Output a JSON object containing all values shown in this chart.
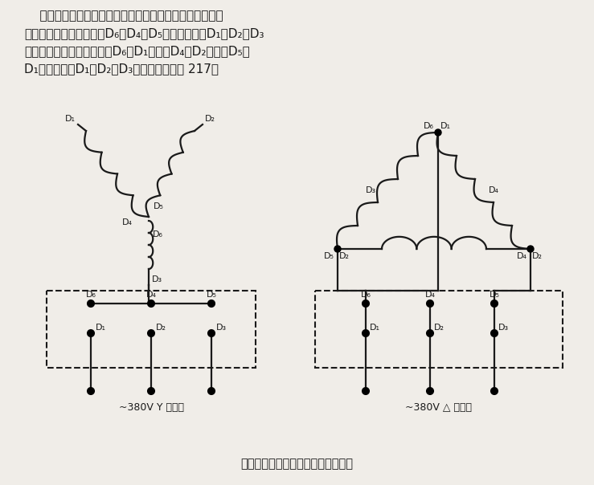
{
  "bg_color": "#f0ede8",
  "line_color": "#1a1a1a",
  "text_color": "#1a1a1a",
  "star_label": "~380V Y 接线法",
  "delta_label": "~380V △ 接线法",
  "title_text": "三相交流电动机星形三角形接线方法",
  "desc1": "一般三相交流电动机接线架上都引出六个接线柱，当电动",
  "desc2": "机铭牌上为星形接法时，D₆、D₄、D₅相连接，其余D₁、D₂、D₃",
  "desc3": "接电源；为三角形接法时，D₆与D₁连接，D₄与D₂连接，D₅与",
  "desc4": "D₁连接，然后D₁、D₂、D₃接电源。参见图 217。"
}
